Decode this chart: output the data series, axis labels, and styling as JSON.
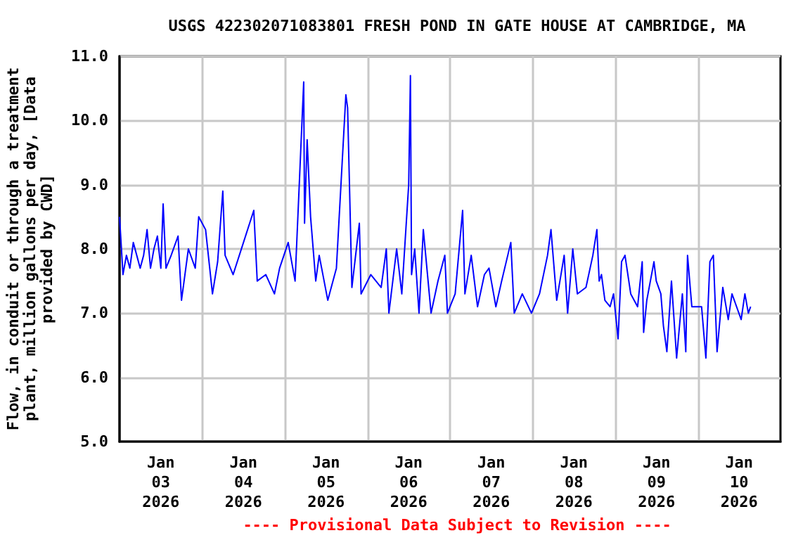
{
  "chart_data": {
    "type": "line",
    "title": "USGS 422302071083801 FRESH POND IN GATE HOUSE AT CAMBRIDGE, MA",
    "ylabel": "Flow, in conduit or through a treatment plant, million gallons per day, [Data provided by CWD]",
    "annotations": [
      "---- Provisional Data Subject to Revision ----"
    ],
    "xlim": [
      "2026-01-03T00:00",
      "2026-01-11T00:00"
    ],
    "xticks": [
      {
        "value": "2026-01-03T12:00",
        "label": "Jan 03 2026"
      },
      {
        "value": "2026-01-04T00:00",
        "label": null
      },
      {
        "value": "2026-01-04T12:00",
        "label": "Jan 04 2026"
      },
      {
        "value": "2026-01-05T00:00",
        "label": null
      },
      {
        "value": "2026-01-05T12:00",
        "label": "Jan 05 2026"
      },
      {
        "value": "2026-01-06T00:00",
        "label": null
      },
      {
        "value": "2026-01-06T12:00",
        "label": "Jan 06 2026"
      },
      {
        "value": "2026-01-07T00:00",
        "label": null
      },
      {
        "value": "2026-01-07T12:00",
        "label": "Jan 07 2026"
      },
      {
        "value": "2026-01-08T00:00",
        "label": null
      },
      {
        "value": "2026-01-08T12:00",
        "label": "Jan 08 2026"
      },
      {
        "value": "2026-01-09T00:00",
        "label": null
      },
      {
        "value": "2026-01-09T12:00",
        "label": "Jan 09 2026"
      },
      {
        "value": "2026-01-10T00:00",
        "label": null
      },
      {
        "value": "2026-01-10T12:00",
        "label": "Jan 10 2026"
      }
    ],
    "ylim": [
      5,
      11
    ],
    "yticks": [
      {
        "value": 5,
        "label": "5.0"
      },
      {
        "value": 6,
        "label": "6.0"
      },
      {
        "value": 7,
        "label": "7.0"
      },
      {
        "value": 8,
        "label": "8.0"
      },
      {
        "value": 9,
        "label": "9.0"
      },
      {
        "value": 10,
        "label": "10.0"
      },
      {
        "value": 11,
        "label": "11.0"
      }
    ],
    "grid": true,
    "x": [
      "2026-01-03T00:00",
      "2026-01-03T01:00",
      "2026-01-03T02:00",
      "2026-01-03T03:00",
      "2026-01-03T04:00",
      "2026-01-03T05:00",
      "2026-01-03T06:00",
      "2026-01-03T07:00",
      "2026-01-03T08:00",
      "2026-01-03T09:00",
      "2026-01-03T10:00",
      "2026-01-03T11:00",
      "2026-01-03T12:00",
      "2026-01-03T12:40",
      "2026-01-03T13:30",
      "2026-01-03T15:00",
      "2026-01-03T17:00",
      "2026-01-03T18:00",
      "2026-01-03T19:00",
      "2026-01-03T20:00",
      "2026-01-03T22:00",
      "2026-01-03T23:00",
      "2026-01-04T01:00",
      "2026-01-04T03:00",
      "2026-01-04T04:30",
      "2026-01-04T06:00",
      "2026-01-04T06:40",
      "2026-01-04T09:00",
      "2026-01-04T12:00",
      "2026-01-04T15:00",
      "2026-01-04T16:00",
      "2026-01-04T18:30",
      "2026-01-04T21:00",
      "2026-01-04T22:30",
      "2026-01-05T01:00",
      "2026-01-05T03:00",
      "2026-01-05T05:30",
      "2026-01-05T05:45",
      "2026-01-05T06:30",
      "2026-01-05T07:30",
      "2026-01-05T09:00",
      "2026-01-05T10:00",
      "2026-01-05T12:30",
      "2026-01-05T15:00",
      "2026-01-05T17:45",
      "2026-01-05T18:15",
      "2026-01-05T18:45",
      "2026-01-05T19:30",
      "2026-01-05T21:40",
      "2026-01-05T22:10",
      "2026-01-06T01:00",
      "2026-01-06T04:00",
      "2026-01-06T05:30",
      "2026-01-06T06:15",
      "2026-01-06T08:30",
      "2026-01-06T10:00",
      "2026-01-06T12:00",
      "2026-01-06T12:30",
      "2026-01-06T12:50",
      "2026-01-06T13:45",
      "2026-01-06T15:00",
      "2026-01-06T16:15",
      "2026-01-06T18:30",
      "2026-01-06T20:30",
      "2026-01-06T22:30",
      "2026-01-06T23:15",
      "2026-01-07T01:30",
      "2026-01-07T03:40",
      "2026-01-07T04:20",
      "2026-01-07T06:10",
      "2026-01-07T08:00",
      "2026-01-07T10:00",
      "2026-01-07T11:20",
      "2026-01-07T13:20",
      "2026-01-07T15:00",
      "2026-01-07T17:40",
      "2026-01-07T18:40",
      "2026-01-07T21:00",
      "2026-01-07T23:40",
      "2026-01-08T02:00",
      "2026-01-08T04:20",
      "2026-01-08T05:20",
      "2026-01-08T07:00",
      "2026-01-08T09:10",
      "2026-01-08T10:10",
      "2026-01-08T11:40",
      "2026-01-08T13:00",
      "2026-01-08T15:30",
      "2026-01-08T17:30",
      "2026-01-08T18:40",
      "2026-01-08T19:20",
      "2026-01-08T20:00",
      "2026-01-08T21:00",
      "2026-01-08T22:30",
      "2026-01-08T23:30",
      "2026-01-09T00:50",
      "2026-01-09T01:50",
      "2026-01-09T02:50",
      "2026-01-09T04:30",
      "2026-01-09T06:30",
      "2026-01-09T07:50",
      "2026-01-09T08:15",
      "2026-01-09T09:10",
      "2026-01-09T11:15",
      "2026-01-09T11:55",
      "2026-01-09T13:15",
      "2026-01-09T14:00",
      "2026-01-09T15:00",
      "2026-01-09T16:20",
      "2026-01-09T17:50",
      "2026-01-09T19:30",
      "2026-01-09T20:30",
      "2026-01-09T21:00",
      "2026-01-09T22:15",
      "2026-01-09T23:40",
      "2026-01-10T01:05",
      "2026-01-10T02:20",
      "2026-01-10T03:30",
      "2026-01-10T04:30",
      "2026-01-10T05:35",
      "2026-01-10T07:15",
      "2026-01-10T08:50",
      "2026-01-10T09:55",
      "2026-01-10T12:35",
      "2026-01-10T13:40",
      "2026-01-10T14:40",
      "2026-01-10T15:20"
    ],
    "series": [
      {
        "color": "#0000ff",
        "values": [
          8.5,
          7.6,
          7.9,
          7.7,
          8.1,
          7.9,
          7.7,
          7.9,
          8.3,
          7.7,
          8.0,
          8.2,
          7.7,
          8.7,
          7.7,
          7.9,
          8.2,
          7.2,
          7.6,
          8.0,
          7.7,
          8.5,
          8.3,
          7.3,
          7.8,
          8.9,
          7.9,
          7.6,
          8.1,
          8.6,
          7.5,
          7.6,
          7.3,
          7.7,
          8.1,
          7.5,
          10.6,
          8.4,
          9.7,
          8.5,
          7.5,
          7.9,
          7.2,
          7.7,
          10.4,
          10.2,
          9.1,
          7.4,
          8.4,
          7.3,
          7.6,
          7.4,
          8.0,
          7.0,
          8.0,
          7.3,
          9.0,
          10.7,
          7.6,
          8.0,
          7.0,
          8.3,
          7.0,
          7.5,
          7.9,
          7.0,
          7.3,
          8.6,
          7.3,
          7.9,
          7.1,
          7.6,
          7.7,
          7.1,
          7.5,
          8.1,
          7.0,
          7.3,
          7.0,
          7.3,
          7.9,
          8.3,
          7.2,
          7.9,
          7.0,
          8.0,
          7.3,
          7.4,
          7.9,
          8.3,
          7.5,
          7.6,
          7.2,
          7.1,
          7.3,
          6.6,
          7.8,
          7.9,
          7.3,
          7.1,
          7.8,
          6.7,
          7.2,
          7.8,
          7.5,
          7.3,
          6.8,
          6.4,
          7.5,
          6.3,
          7.3,
          6.4,
          7.9,
          7.1,
          7.1,
          7.1,
          6.3,
          7.8,
          7.9,
          6.4,
          7.4,
          6.9,
          7.3,
          6.9,
          7.3,
          7.0,
          7.1
        ]
      }
    ]
  }
}
